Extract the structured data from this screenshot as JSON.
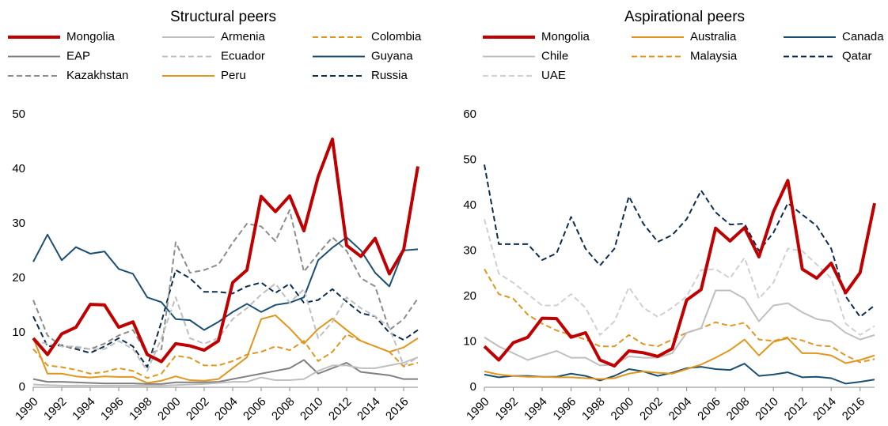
{
  "chart_data": [
    {
      "type": "line",
      "title": "Structural peers",
      "x": [
        1990,
        1991,
        1992,
        1993,
        1994,
        1995,
        1996,
        1997,
        1998,
        1999,
        2000,
        2001,
        2002,
        2003,
        2004,
        2005,
        2006,
        2007,
        2008,
        2009,
        2010,
        2011,
        2012,
        2013,
        2014,
        2015,
        2016,
        2017
      ],
      "xlim": [
        1990,
        2017
      ],
      "xticks": [
        1990,
        1992,
        1994,
        1996,
        1998,
        2000,
        2002,
        2004,
        2006,
        2008,
        2010,
        2012,
        2014,
        2016
      ],
      "ylim": [
        0,
        50
      ],
      "yticks": [
        0,
        10,
        20,
        30,
        40,
        50
      ],
      "series": [
        {
          "name": "Mongolia",
          "color": "#c00000",
          "dash": "solid",
          "width": 4,
          "values": [
            9,
            6,
            9.8,
            11,
            15.2,
            15.1,
            11,
            12,
            6,
            4.7,
            8,
            7.6,
            6.8,
            8.5,
            19.2,
            21.5,
            35,
            32.2,
            35.1,
            28.7,
            38.6,
            45.5,
            26,
            24,
            27.3,
            20.8,
            25.2,
            40.5
          ]
        },
        {
          "name": "Armenia",
          "color": "#bfbfbf",
          "dash": "solid",
          "width": 2,
          "values": [
            0.5,
            0.4,
            0.3,
            0.3,
            0.3,
            0.3,
            0.3,
            0.3,
            0.3,
            0.3,
            0.4,
            0.5,
            0.6,
            0.8,
            1,
            1,
            1.8,
            1.3,
            1.3,
            1.5,
            3,
            4,
            4,
            3.5,
            3.5,
            4,
            4.5,
            5.5
          ]
        },
        {
          "name": "Colombia",
          "color": "#e0961f",
          "dash": "dashed",
          "width": 2,
          "values": [
            7,
            4,
            3.7,
            3.2,
            2.5,
            2.8,
            3.5,
            3,
            1.7,
            2.5,
            5.8,
            5.4,
            4,
            4,
            4.8,
            6,
            6.5,
            7.5,
            6.8,
            8.5,
            4.8,
            6.5,
            9.7,
            8.5,
            7.5,
            6.5,
            3.8,
            4.5
          ]
        },
        {
          "name": "EAP",
          "color": "#808080",
          "dash": "solid",
          "width": 2,
          "values": [
            1.5,
            1,
            1,
            0.9,
            0.8,
            0.7,
            0.7,
            0.7,
            0.6,
            0.6,
            0.9,
            0.9,
            0.9,
            1,
            1.5,
            2,
            2.5,
            3,
            3.5,
            5,
            2.5,
            3.5,
            4.5,
            2.8,
            2.5,
            2.2,
            1.5,
            1.5
          ]
        },
        {
          "name": "Ecuador",
          "color": "#bfbfbf",
          "dash": "dashed",
          "width": 2,
          "values": [
            8.5,
            8,
            7.5,
            7.5,
            7,
            7,
            8.5,
            7,
            3,
            9,
            16.5,
            9,
            8,
            9,
            12.5,
            14.5,
            17,
            19,
            15.5,
            18,
            9,
            12,
            16.5,
            14.5,
            13,
            11,
            4,
            5.5
          ]
        },
        {
          "name": "Guyana",
          "color": "#1b4f72",
          "dash": "solid",
          "width": 2,
          "values": [
            23,
            28,
            23.3,
            25.7,
            24.5,
            24.9,
            21.7,
            20.8,
            16.5,
            15.6,
            12.5,
            12.3,
            10.5,
            12,
            13.8,
            15.3,
            13.8,
            15.1,
            15.5,
            16.5,
            23.3,
            25.6,
            27.5,
            25.1,
            21,
            18.5,
            25.1,
            25.3
          ]
        },
        {
          "name": "Kazakhstan",
          "color": "#8c8c8c",
          "dash": "dashed",
          "width": 2,
          "values": [
            16,
            9.5,
            7.5,
            7.3,
            7,
            8,
            9.5,
            10.5,
            6,
            7,
            26.6,
            21,
            21.5,
            22.5,
            26.5,
            30,
            29.5,
            26.8,
            32.5,
            21.2,
            24.5,
            27.5,
            25,
            20,
            18.5,
            10.5,
            12.5,
            16.3
          ]
        },
        {
          "name": "Peru",
          "color": "#e0961f",
          "dash": "solid",
          "width": 2,
          "values": [
            9,
            2.5,
            2.5,
            2,
            1.8,
            2,
            1.9,
            1.9,
            0.8,
            1.2,
            2,
            1.3,
            1.2,
            1.5,
            3.5,
            5.5,
            12.5,
            13.2,
            10.8,
            8,
            10.7,
            12.6,
            10.5,
            8.5,
            7.5,
            6.5,
            7.3,
            9
          ]
        },
        {
          "name": "Russia",
          "color": "#0d2d4f",
          "dash": "dashed",
          "width": 2,
          "values": [
            13,
            7.5,
            7.7,
            7,
            6.3,
            7.5,
            9,
            7.5,
            3.7,
            12,
            21.5,
            20,
            17.5,
            17.5,
            17.2,
            18.5,
            19.2,
            17.3,
            19,
            15.5,
            16,
            18,
            15.7,
            13.6,
            13,
            10,
            8.7,
            10.5
          ]
        }
      ]
    },
    {
      "type": "line",
      "title": "Aspirational peers",
      "x": [
        1990,
        1991,
        1992,
        1993,
        1994,
        1995,
        1996,
        1997,
        1998,
        1999,
        2000,
        2001,
        2002,
        2003,
        2004,
        2005,
        2006,
        2007,
        2008,
        2009,
        2010,
        2011,
        2012,
        2013,
        2014,
        2015,
        2016,
        2017
      ],
      "xlim": [
        1990,
        2017
      ],
      "xticks": [
        1990,
        1992,
        1994,
        1996,
        1998,
        2000,
        2002,
        2004,
        2006,
        2008,
        2010,
        2012,
        2014,
        2016
      ],
      "ylim": [
        0,
        60
      ],
      "yticks": [
        0,
        10,
        20,
        30,
        40,
        50,
        60
      ],
      "series": [
        {
          "name": "Mongolia",
          "color": "#c00000",
          "dash": "solid",
          "width": 4,
          "values": [
            9,
            6,
            9.8,
            11,
            15.2,
            15.1,
            11,
            12,
            6,
            4.7,
            8,
            7.6,
            6.8,
            8.5,
            19.2,
            21.5,
            35,
            32.2,
            35.1,
            28.7,
            38.6,
            45.5,
            26,
            24,
            27.3,
            20.8,
            25.2,
            40.5
          ]
        },
        {
          "name": "Australia",
          "color": "#e0961f",
          "dash": "solid",
          "width": 2,
          "values": [
            3.5,
            2.8,
            2.5,
            2.3,
            2.3,
            2.2,
            2.2,
            2,
            1.8,
            2,
            3,
            3.5,
            3.2,
            3,
            4,
            5,
            6.5,
            8.2,
            10.5,
            7,
            10,
            10.8,
            7.5,
            7.5,
            7,
            5.3,
            6,
            7
          ]
        },
        {
          "name": "Canada",
          "color": "#1b4f72",
          "dash": "solid",
          "width": 2,
          "values": [
            2.8,
            2.2,
            2.5,
            2.5,
            2.3,
            2.3,
            3,
            2.5,
            1.5,
            2.5,
            4,
            3.5,
            2.5,
            3.2,
            4.2,
            4.5,
            4,
            3.8,
            5.2,
            2.5,
            2.8,
            3.3,
            2.2,
            2.3,
            2,
            0.8,
            1.2,
            1.7
          ]
        },
        {
          "name": "Chile",
          "color": "#bfbfbf",
          "dash": "solid",
          "width": 2,
          "values": [
            11,
            9,
            7.5,
            6,
            7,
            8,
            6.5,
            6.5,
            4.8,
            5,
            6.8,
            6.5,
            6.5,
            7.5,
            12,
            13,
            21.3,
            21.3,
            19.5,
            14.5,
            18,
            18.5,
            16.5,
            15,
            14.5,
            12,
            10.5,
            11.5
          ]
        },
        {
          "name": "Malaysia",
          "color": "#e0961f",
          "dash": "dashed",
          "width": 2,
          "values": [
            26,
            20.5,
            19.5,
            16,
            14,
            12.5,
            11.5,
            10.5,
            9,
            9,
            11.5,
            9.5,
            9,
            10.5,
            12,
            13,
            14.3,
            13.5,
            14.2,
            10.5,
            10.2,
            11,
            10.3,
            9.2,
            9,
            7,
            5.5,
            6.2
          ]
        },
        {
          "name": "Qatar",
          "color": "#0d2d4f",
          "dash": "dashed",
          "width": 2,
          "values": [
            49,
            31.5,
            31.5,
            31.5,
            28,
            29.5,
            37.5,
            30.5,
            26.8,
            30.5,
            42,
            36,
            32,
            33.5,
            37,
            43.3,
            38.5,
            35.8,
            36,
            30,
            34,
            40.5,
            38,
            35.5,
            30.5,
            20,
            15.5,
            18
          ]
        },
        {
          "name": "UAE",
          "color": "#d0d0d0",
          "dash": "dashed",
          "width": 2,
          "values": [
            37,
            25,
            23,
            20.5,
            18,
            18,
            20.5,
            17.5,
            11.5,
            14.5,
            22,
            17.5,
            15.5,
            17.5,
            20,
            25.8,
            26,
            24,
            28.5,
            19.5,
            23,
            30.5,
            30,
            27,
            24,
            14,
            11.5,
            13.5
          ]
        }
      ]
    }
  ]
}
